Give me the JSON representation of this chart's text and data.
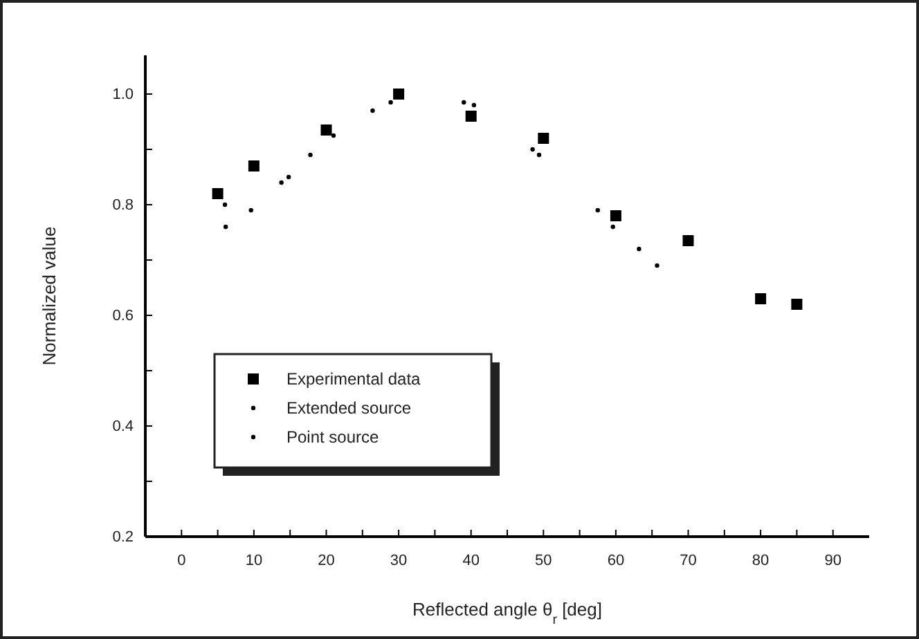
{
  "chart_data": {
    "type": "scatter",
    "xlabel": "Reflected angle θ$_{r}$ [deg]",
    "ylabel": "Normalized value",
    "xlim": [
      -5,
      95
    ],
    "ylim": [
      0.2,
      1.07
    ],
    "xticks": [
      0,
      {
        "value": 5,
        "label": null
      },
      10,
      {
        "value": 15,
        "label": null
      },
      20,
      {
        "value": 25,
        "label": null
      },
      30,
      {
        "value": 35,
        "label": null
      },
      40,
      {
        "value": 45,
        "label": null
      },
      50,
      {
        "value": 55,
        "label": null
      },
      60,
      {
        "value": 65,
        "label": null
      },
      70,
      {
        "value": 75,
        "label": null
      },
      80,
      {
        "value": 85,
        "label": null
      },
      90
    ],
    "yticks": [
      {
        "value": 0.2,
        "label": "0.2"
      },
      {
        "value": 0.3,
        "label": null
      },
      {
        "value": 0.4,
        "label": "0.4"
      },
      {
        "value": 0.5,
        "label": null
      },
      {
        "value": 0.6,
        "label": "0.6"
      },
      {
        "value": 0.7,
        "label": null
      },
      {
        "value": 0.8,
        "label": "0.8"
      },
      {
        "value": 0.9,
        "label": null
      },
      {
        "value": 1.0,
        "label": "1.0"
      }
    ],
    "grid": false,
    "legend": "bottom left",
    "series": [
      {
        "name": "Experimental data",
        "color": "#000000",
        "marker": "square",
        "x": [
          5,
          10,
          20,
          30,
          40,
          50,
          60,
          70,
          80,
          85
        ],
        "values": [
          0.82,
          0.87,
          0.935,
          1.0,
          0.96,
          0.92,
          0.78,
          0.735,
          0.63,
          0.62
        ]
      },
      {
        "name": "Extended source",
        "color": "#000000",
        "marker": "circle",
        "x": [
          6,
          14.8,
          21,
          28.9,
          40.4,
          49.4,
          59.6,
          65.7
        ],
        "values": [
          0.8,
          0.85,
          0.925,
          0.985,
          0.98,
          0.89,
          0.76,
          0.69
        ]
      },
      {
        "name": "Point source",
        "color": "#000000",
        "marker": "circle",
        "x": [
          6.1,
          9.6,
          13.8,
          17.8,
          26.4,
          39,
          48.5,
          57.5,
          63.2
        ],
        "values": [
          0.76,
          0.79,
          0.84,
          0.89,
          0.97,
          0.985,
          0.9,
          0.79,
          0.72
        ]
      }
    ]
  }
}
